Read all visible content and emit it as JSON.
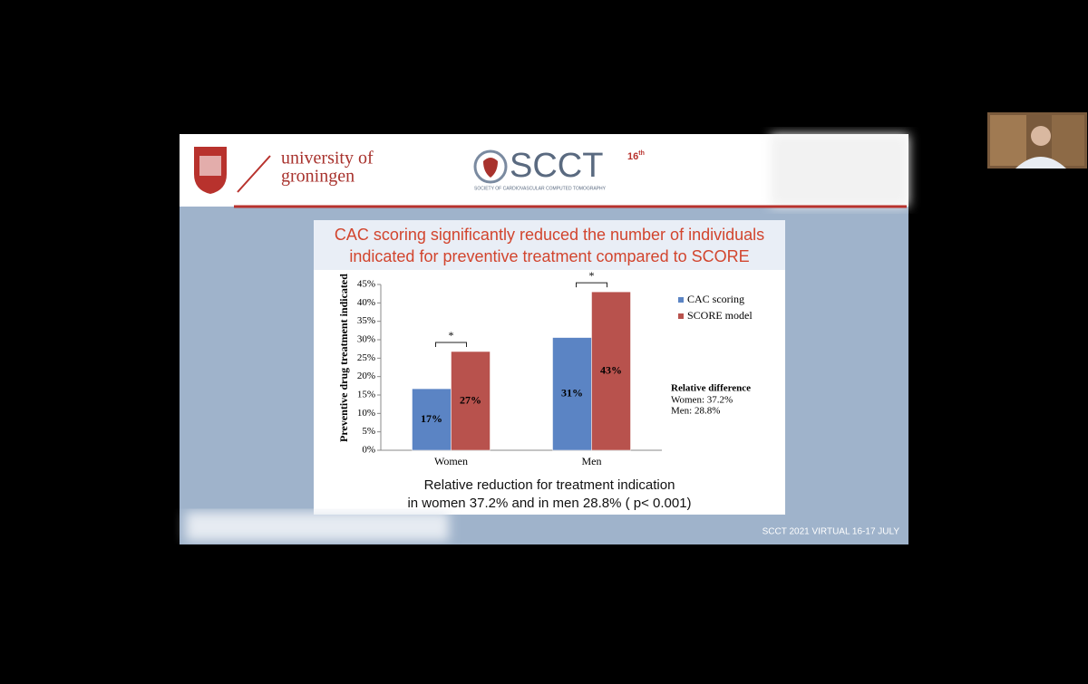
{
  "header": {
    "university_line1": "university of",
    "university_line2": "groningen",
    "society_logo": "SCCT",
    "edition_number": "16",
    "edition_suffix": "th",
    "society_name": "SOCIETY OF CARDIOVASCULAR COMPUTED TOMOGRAPHY"
  },
  "slide": {
    "title_line1": "CAC scoring significantly reduced the number of individuals",
    "title_line2": "indicated for preventive treatment compared to SCORE",
    "caption_line1": "Relative reduction for treatment indication",
    "caption_line2": "in women 37.2% and in men 28.8% ( p< 0.001)",
    "footer": "SCCT 2021 VIRTUAL 16-17 JULY"
  },
  "chart_data": {
    "type": "bar",
    "y_label": "Preventive drug treatment indicated",
    "categories": [
      "Women",
      "Men"
    ],
    "series": [
      {
        "name": "CAC scoring",
        "color": "#5b84c4",
        "values": [
          16.7,
          30.6
        ],
        "value_labels": [
          "17%",
          "31%"
        ]
      },
      {
        "name": "SCORE model",
        "color": "#b8524d",
        "values": [
          26.8,
          43.0
        ],
        "value_labels": [
          "27%",
          "43%"
        ]
      }
    ],
    "ylim": [
      0,
      45
    ],
    "yticks": [
      {
        "value": 0,
        "label": "0%"
      },
      {
        "value": 5,
        "label": "5%"
      },
      {
        "value": 10,
        "label": "10%"
      },
      {
        "value": 15,
        "label": "15%"
      },
      {
        "value": 20,
        "label": "20%"
      },
      {
        "value": 25,
        "label": "25%"
      },
      {
        "value": 30,
        "label": "30%"
      },
      {
        "value": 35,
        "label": "35%"
      },
      {
        "value": 40,
        "label": "40%"
      },
      {
        "value": 45,
        "label": "45%"
      }
    ],
    "grid": false,
    "legend": "right",
    "annotations": [
      "*",
      "*"
    ],
    "relative_difference": {
      "title": "Relative difference",
      "lines": [
        "Women: 37.2%",
        "Men: 28.8%"
      ]
    }
  }
}
